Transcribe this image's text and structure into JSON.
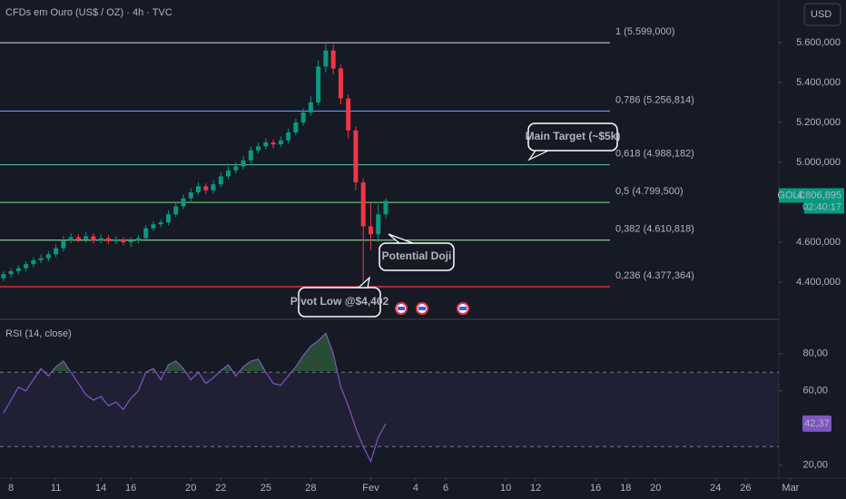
{
  "header": {
    "title": "CFDs em Ouro (US$ / OZ) · 4h · TVC",
    "currency": "USD"
  },
  "chart_data": [
    {
      "type": "candlestick",
      "x": [
        7.5,
        8,
        8.5,
        9,
        9.5,
        10,
        10.5,
        11,
        11.5,
        12,
        12.5,
        13,
        13.5,
        14,
        14.5,
        15,
        15.5,
        16,
        16.5,
        17,
        17.5,
        18,
        18.5,
        19,
        19.5,
        20,
        20.5,
        21,
        21.5,
        22,
        22.5,
        23,
        23.5,
        24,
        24.5,
        25,
        25.5,
        26,
        26.5,
        27,
        27.5,
        28,
        28.5,
        29,
        29.5,
        30,
        30.5,
        31,
        31.5,
        32,
        32.5,
        33
      ],
      "open": [
        4420,
        4440,
        4455,
        4470,
        4490,
        4510,
        4520,
        4540,
        4570,
        4610,
        4625,
        4615,
        4630,
        4610,
        4620,
        4605,
        4615,
        4600,
        4610,
        4620,
        4670,
        4690,
        4700,
        4740,
        4780,
        4820,
        4850,
        4880,
        4860,
        4890,
        4930,
        4960,
        4980,
        5010,
        5060,
        5080,
        5100,
        5090,
        5110,
        5150,
        5200,
        5250,
        5300,
        5480,
        5560,
        5470,
        5320,
        5160,
        4900,
        4680,
        4640,
        4740
      ],
      "high": [
        4455,
        4470,
        4485,
        4505,
        4525,
        4540,
        4555,
        4590,
        4630,
        4645,
        4640,
        4650,
        4645,
        4640,
        4635,
        4630,
        4625,
        4625,
        4635,
        4685,
        4705,
        4715,
        4760,
        4800,
        4840,
        4870,
        4900,
        4895,
        4910,
        4950,
        4980,
        5000,
        5030,
        5080,
        5100,
        5120,
        5115,
        5130,
        5170,
        5220,
        5270,
        5330,
        5510,
        5599,
        5590,
        5490,
        5340,
        5180,
        4920,
        4800,
        4790,
        4820
      ],
      "low": [
        4405,
        4425,
        4440,
        4455,
        4475,
        4495,
        4505,
        4525,
        4555,
        4595,
        4600,
        4600,
        4595,
        4595,
        4590,
        4590,
        4585,
        4575,
        4595,
        4605,
        4655,
        4675,
        4685,
        4725,
        4765,
        4805,
        4835,
        4840,
        4845,
        4875,
        4915,
        4945,
        4965,
        4995,
        5045,
        5065,
        5070,
        5075,
        5095,
        5135,
        5185,
        5235,
        5285,
        5450,
        5440,
        5290,
        5120,
        4860,
        4402,
        4560,
        4600,
        4720
      ],
      "close": [
        4440,
        4455,
        4470,
        4490,
        4510,
        4520,
        4540,
        4570,
        4610,
        4625,
        4615,
        4630,
        4610,
        4620,
        4605,
        4615,
        4600,
        4610,
        4620,
        4670,
        4690,
        4700,
        4740,
        4780,
        4820,
        4850,
        4880,
        4860,
        4890,
        4930,
        4960,
        4980,
        5010,
        5060,
        5080,
        5100,
        5090,
        5110,
        5150,
        5200,
        5250,
        5300,
        5480,
        5560,
        5470,
        5320,
        5160,
        4900,
        4680,
        4640,
        4740,
        4806.895
      ],
      "up_color": "#089981",
      "down_color": "#f23645",
      "xlim": [
        7.27,
        63.7
      ],
      "ylim": [
        4223,
        5813
      ],
      "yticks": [
        {
          "value": 4400,
          "label": "4.400,000"
        },
        {
          "value": 4600,
          "label": "4.600,000"
        },
        {
          "value": 5000,
          "label": "5.000,000"
        },
        {
          "value": 5200,
          "label": "5.200,000"
        },
        {
          "value": 5400,
          "label": "5.400,000"
        },
        {
          "value": 5600,
          "label": "5.600,000"
        }
      ],
      "fib_levels": [
        {
          "value": 5599,
          "label": "1 (5.599,000)",
          "color": "#b2b5be"
        },
        {
          "value": 5256.814,
          "label": "0,786 (5.256,814)",
          "color": "#5b9cf6"
        },
        {
          "value": 4988.182,
          "label": "0,618 (4.988,182)",
          "color": "#4caf9a"
        },
        {
          "value": 4799.5,
          "label": "0,5 (4.799,500)",
          "color": "#66bb6a"
        },
        {
          "value": 4610.818,
          "label": "0,382 (4.610,818)",
          "color": "#81c784"
        },
        {
          "value": 4377.364,
          "label": "0,236 (4.377,364)",
          "color": "#f23645"
        }
      ],
      "price_tag": {
        "symbol": "GOLD",
        "label": "4.806,895",
        "countdown": "02:40:17",
        "color": "#089981"
      },
      "annotations": [
        {
          "text": "Main Target (~$5k)",
          "color": "#4caf9a"
        },
        {
          "text": "Potential Doji",
          "color": "#ffffff"
        },
        {
          "text": "Pivot Low @$4,402",
          "color": "#3ddc5a"
        }
      ]
    },
    {
      "type": "line",
      "title": "RSI (14, close)",
      "x": [
        7.5,
        8,
        8.5,
        9,
        9.5,
        10,
        10.5,
        11,
        11.5,
        12,
        12.5,
        13,
        13.5,
        14,
        14.5,
        15,
        15.5,
        16,
        16.5,
        17,
        17.5,
        18,
        18.5,
        19,
        19.5,
        20,
        20.5,
        21,
        21.5,
        22,
        22.5,
        23,
        23.5,
        24,
        24.5,
        25,
        25.5,
        26,
        26.5,
        27,
        27.5,
        28,
        28.5,
        29,
        29.5,
        30,
        30.5,
        31,
        31.5,
        32,
        32.5,
        33
      ],
      "values": [
        48,
        55,
        62,
        60,
        66,
        72,
        68,
        73,
        76,
        70,
        64,
        58,
        55,
        57,
        52,
        54,
        50,
        56,
        60,
        70,
        72,
        66,
        74,
        76,
        72,
        66,
        70,
        64,
        67,
        71,
        74,
        68,
        73,
        76,
        77,
        70,
        64,
        63,
        68,
        73,
        79,
        84,
        87,
        91,
        80,
        62,
        52,
        40,
        30,
        22,
        35,
        42.37
      ],
      "value_labels": [
        null,
        null,
        null,
        null,
        null,
        null,
        null,
        null,
        null,
        null,
        null,
        null,
        null,
        null,
        null,
        null,
        null,
        null,
        null,
        null,
        null,
        null,
        null,
        null,
        null,
        null,
        null,
        null,
        null,
        null,
        null,
        null,
        null,
        null,
        null,
        null,
        null,
        null,
        null,
        null,
        null,
        null,
        null,
        null,
        null,
        null,
        null,
        null,
        null,
        null,
        null,
        "42,37"
      ],
      "color": "#7e57c2",
      "xlim": [
        7.27,
        63.7
      ],
      "xticks": [
        8,
        11,
        14,
        16,
        20,
        22,
        25,
        28,
        {
          "value": 32,
          "label": "Fev"
        },
        {
          "value": 35,
          "label": "4"
        },
        {
          "value": 37,
          "label": "6"
        },
        {
          "value": 41,
          "label": "10"
        },
        {
          "value": 43,
          "label": "12"
        },
        {
          "value": 47,
          "label": "16"
        },
        {
          "value": 49,
          "label": "18"
        },
        {
          "value": 51,
          "label": "20"
        },
        {
          "value": 55,
          "label": "24"
        },
        {
          "value": 57,
          "label": "26"
        },
        {
          "value": 60,
          "label": "Mar"
        }
      ],
      "ylim": [
        14,
        97
      ],
      "yticks": [
        {
          "value": 20,
          "label": "20,00"
        },
        {
          "value": 60,
          "label": "60,00"
        },
        {
          "value": 80,
          "label": "80,00"
        }
      ],
      "bands": [
        30,
        70
      ]
    }
  ]
}
